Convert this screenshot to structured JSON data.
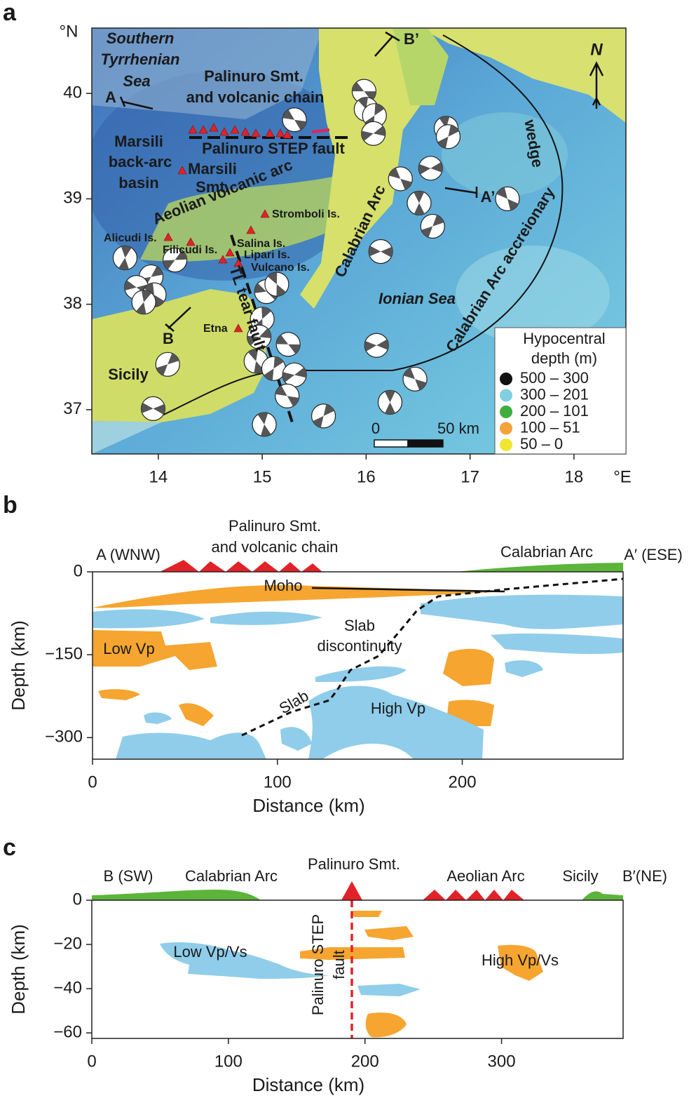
{
  "chart_data": [
    {
      "type": "map",
      "panel": "a",
      "xlabel": "°E",
      "ylabel": "°N",
      "xlim": [
        13.36,
        18.5
      ],
      "ylim": [
        36.58,
        40.62
      ],
      "xticks": [
        14,
        15,
        16,
        17,
        18
      ],
      "yticks": [
        37,
        38,
        39,
        40
      ],
      "labels": [
        [
          "Southern",
          "Tyrrhenian",
          "Sea"
        ],
        [
          "Palinuro Smt.",
          "and volcanic chain"
        ],
        [
          "Marsili",
          "back-arc",
          "basin"
        ],
        [
          "Marsili",
          "Smt."
        ],
        "Palinuro STEP fault",
        "Aeolian volcanic arc",
        "Stromboli Is.",
        "Alicudi Is.",
        "Filicudi Is.",
        "Salina Is.",
        "Lipari Is.",
        "Vulcano Is.",
        "TL tear fault",
        "Calabrian Arc",
        "Ionian Sea",
        [
          "Calabrian Arc accreionary",
          "wedge"
        ],
        "Etna",
        "Sicily",
        "A",
        "A’",
        "B",
        "B’"
      ],
      "events": {
        "lon": [
          15.98,
          16.0,
          16.08,
          16.07,
          15.31,
          16.77,
          16.79,
          16.62,
          16.33,
          16.51,
          16.64,
          16.14,
          17.36,
          13.68,
          13.93,
          13.79,
          13.96,
          13.86,
          14.16,
          15.04,
          15.14,
          15.0,
          14.97,
          15.25,
          14.94,
          15.11,
          15.31,
          15.24,
          15.02,
          15.59,
          16.1,
          16.47,
          16.23,
          14.09,
          13.95
        ],
        "lat": [
          40.02,
          39.85,
          39.79,
          39.62,
          39.75,
          39.67,
          39.59,
          39.29,
          39.19,
          38.96,
          38.74,
          38.5,
          39.0,
          38.44,
          38.26,
          38.16,
          38.09,
          38.02,
          38.42,
          38.12,
          38.19,
          37.86,
          37.69,
          37.62,
          37.46,
          37.39,
          37.33,
          37.13,
          36.86,
          36.94,
          37.61,
          37.29,
          37.07,
          37.43,
          37.01
        ]
      },
      "legend": {
        "title": [
          "Hypocentral",
          "depth (m)"
        ],
        "items": [
          {
            "name": "500 – 300",
            "color": "#111111"
          },
          {
            "name": "300 – 201",
            "color": "#7fd0e0"
          },
          {
            "name": "200 – 101",
            "color": "#3fae3f"
          },
          {
            "name": "100 – 51",
            "color": "#f5a23a"
          },
          {
            "name": "50 – 0",
            "color": "#efe634"
          }
        ]
      },
      "scale_bar": [
        "0",
        "50 km"
      ],
      "north": "N"
    },
    {
      "type": "section",
      "panel": "b",
      "xlabel": "Distance (km)",
      "ylabel": "Depth (km)",
      "xlim": [
        0,
        287
      ],
      "ylim": [
        -339,
        0
      ],
      "xticks": [
        0,
        100,
        200
      ],
      "yticks": [
        0,
        {
          "value": -150,
          "label": "−150"
        },
        {
          "value": -300,
          "label": "−300"
        }
      ],
      "labels": [
        "A (WNW)",
        [
          "Palinuro Smt.",
          "and volcanic chain"
        ],
        "Calabrian Arc",
        "A′ (ESE)",
        "Moho",
        [
          "Slab",
          "discontinuity"
        ],
        "Low Vp",
        "Slab",
        "High Vp"
      ]
    },
    {
      "type": "section",
      "panel": "c",
      "xlabel": "Distance (km)",
      "ylabel": "Depth (km)",
      "xlim": [
        0,
        389
      ],
      "ylim": [
        -62.5,
        0
      ],
      "xticks": [
        0,
        100,
        200,
        300
      ],
      "yticks": [
        0,
        {
          "value": -20,
          "label": "−20"
        },
        {
          "value": -40,
          "label": "−40"
        },
        {
          "value": -60,
          "label": "−60"
        }
      ],
      "labels": [
        "B (SW)",
        "Calabrian Arc",
        "Palinuro Smt.",
        "Aeolian Arc",
        "Sicily",
        "B′(NE)",
        "Low Vp/Vs",
        [
          "Palinuro STEP",
          "fault"
        ],
        "High Vp/Vs"
      ]
    }
  ]
}
